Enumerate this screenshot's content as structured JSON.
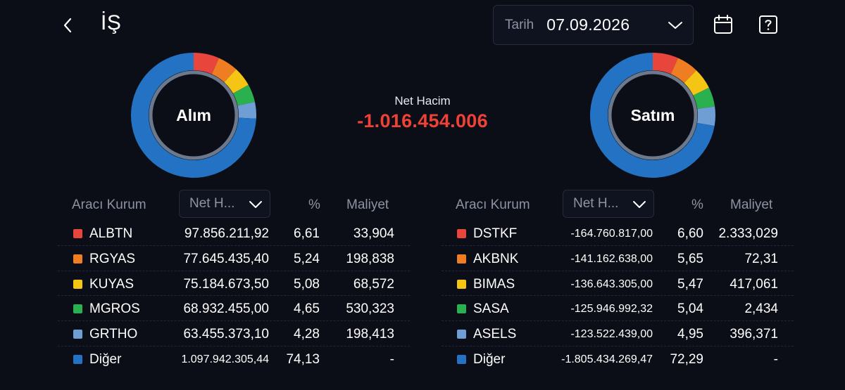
{
  "header": {
    "title": "İŞ",
    "date_label": "Tarih",
    "date_value": "07.09.2026"
  },
  "summary": {
    "net_label": "Net Hacim",
    "net_value": "-1.016.454.006",
    "net_color": "#ef4136"
  },
  "colors": {
    "red": "#e8453c",
    "orange": "#ef7d22",
    "yellow": "#f4c514",
    "green": "#2bb04f",
    "lightblue": "#6f9ed4",
    "blue": "#2472c4"
  },
  "buy": {
    "donut_label": "Alım",
    "columns": {
      "broker": "Aracı Kurum",
      "sort": "Net H...",
      "pct": "%",
      "cost": "Maliyet"
    },
    "rows": [
      {
        "name": "ALBTN",
        "net": "97.856.211,92",
        "pct": "6,61",
        "cost": "33,904",
        "pct_value": 6.61,
        "color": "#e8453c"
      },
      {
        "name": "RGYAS",
        "net": "77.645.435,40",
        "pct": "5,24",
        "cost": "198,838",
        "pct_value": 5.24,
        "color": "#ef7d22"
      },
      {
        "name": "KUYAS",
        "net": "75.184.673,50",
        "pct": "5,08",
        "cost": "68,572",
        "pct_value": 5.08,
        "color": "#f4c514"
      },
      {
        "name": "MGROS",
        "net": "68.932.455,00",
        "pct": "4,65",
        "cost": "530,323",
        "pct_value": 4.65,
        "color": "#2bb04f"
      },
      {
        "name": "GRTHO",
        "net": "63.455.373,10",
        "pct": "4,28",
        "cost": "198,413",
        "pct_value": 4.28,
        "color": "#6f9ed4"
      },
      {
        "name": "Diğer",
        "net": "1.097.942.305,44",
        "pct": "74,13",
        "cost": "-",
        "pct_value": 74.13,
        "color": "#2472c4",
        "small": true
      }
    ]
  },
  "sell": {
    "donut_label": "Satım",
    "columns": {
      "broker": "Aracı Kurum",
      "sort": "Net H...",
      "pct": "%",
      "cost": "Maliyet"
    },
    "rows": [
      {
        "name": "DSTKF",
        "net": "-164.760.817,00",
        "pct": "6,60",
        "cost": "2.333,029",
        "pct_value": 6.6,
        "color": "#e8453c",
        "small": true
      },
      {
        "name": "AKBNK",
        "net": "-141.162.638,00",
        "pct": "5,65",
        "cost": "72,31",
        "pct_value": 5.65,
        "color": "#ef7d22",
        "small": true
      },
      {
        "name": "BIMAS",
        "net": "-136.643.305,00",
        "pct": "5,47",
        "cost": "417,061",
        "pct_value": 5.47,
        "color": "#f4c514",
        "small": true
      },
      {
        "name": "SASA",
        "net": "-125.946.992,32",
        "pct": "5,04",
        "cost": "2,434",
        "pct_value": 5.04,
        "color": "#2bb04f",
        "small": true
      },
      {
        "name": "ASELS",
        "net": "-123.522.439,00",
        "pct": "4,95",
        "cost": "396,371",
        "pct_value": 4.95,
        "color": "#6f9ed4",
        "small": true
      },
      {
        "name": "Diğer",
        "net": "-1.805.434.269,47",
        "pct": "72,29",
        "cost": "-",
        "pct_value": 72.29,
        "color": "#2472c4",
        "small": true
      }
    ]
  }
}
